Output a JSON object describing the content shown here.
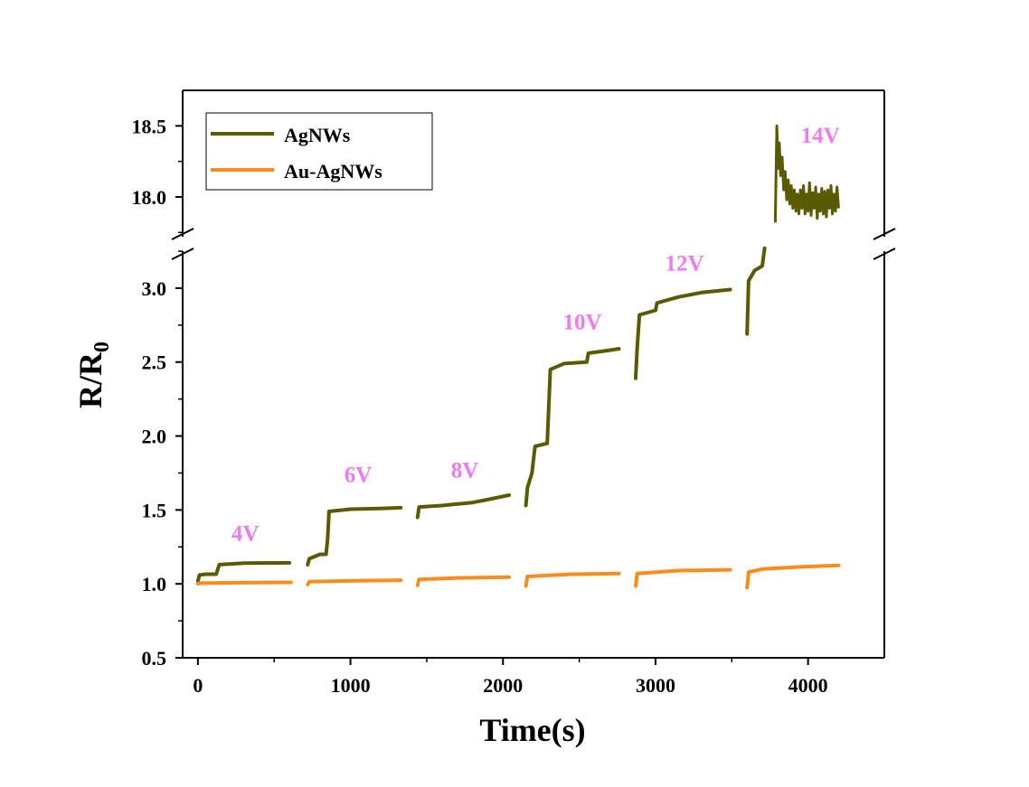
{
  "chart_data": {
    "type": "line",
    "xlabel": "Time(s)",
    "ylabel_main": "R/R",
    "ylabel_sub": "0",
    "xlim": [
      -100,
      4500
    ],
    "xticks": [
      0,
      1000,
      2000,
      3000,
      4000
    ],
    "xtick_labels": [
      "0",
      "1000",
      "2000",
      "3000",
      "4000"
    ],
    "y_lower": {
      "ylim": [
        0.5,
        3.25
      ],
      "yticks": [
        0.5,
        1.0,
        1.5,
        2.0,
        2.5,
        3.0
      ],
      "ytick_labels": [
        "0.5",
        "1.0",
        "1.5",
        "2.0",
        "2.5",
        "3.0"
      ]
    },
    "y_upper": {
      "ylim": [
        17.72,
        18.75
      ],
      "yticks": [
        18.0,
        18.5
      ],
      "ytick_labels": [
        "18.0",
        "18.5"
      ]
    },
    "axis_break": true,
    "grid": false,
    "legend_position": "top-left",
    "series": [
      {
        "name": "AgNWs",
        "color": "#5a5a00",
        "segments": [
          [
            [
              0,
              1.02
            ],
            [
              10,
              1.06
            ],
            [
              50,
              1.065
            ],
            [
              120,
              1.065
            ],
            [
              140,
              1.13
            ],
            [
              300,
              1.14
            ],
            [
              600,
              1.142
            ]
          ],
          [
            [
              720,
              1.13
            ],
            [
              730,
              1.17
            ],
            [
              800,
              1.2
            ],
            [
              840,
              1.2
            ],
            [
              850,
              1.3
            ],
            [
              860,
              1.49
            ],
            [
              1000,
              1.505
            ],
            [
              1200,
              1.51
            ],
            [
              1330,
              1.515
            ]
          ],
          [
            [
              1440,
              1.45
            ],
            [
              1450,
              1.52
            ],
            [
              1600,
              1.53
            ],
            [
              1700,
              1.54
            ],
            [
              1800,
              1.55
            ],
            [
              1900,
              1.57
            ],
            [
              2040,
              1.6
            ]
          ],
          [
            [
              2150,
              1.53
            ],
            [
              2160,
              1.65
            ],
            [
              2190,
              1.75
            ],
            [
              2210,
              1.93
            ],
            [
              2290,
              1.95
            ],
            [
              2310,
              2.45
            ],
            [
              2400,
              2.49
            ],
            [
              2550,
              2.5
            ],
            [
              2560,
              2.56
            ],
            [
              2700,
              2.58
            ],
            [
              2760,
              2.59
            ]
          ],
          [
            [
              2870,
              2.39
            ],
            [
              2880,
              2.6
            ],
            [
              2895,
              2.82
            ],
            [
              3000,
              2.85
            ],
            [
              3010,
              2.9
            ],
            [
              3150,
              2.94
            ],
            [
              3300,
              2.97
            ],
            [
              3490,
              2.99
            ]
          ],
          [
            [
              3600,
              2.69
            ],
            [
              3610,
              3.05
            ],
            [
              3650,
              3.12
            ],
            [
              3700,
              3.15
            ],
            [
              3715,
              3.27
            ]
          ]
        ],
        "upper_segment": [
          [
            3785,
            17.82
          ],
          [
            3795,
            18.5
          ],
          [
            3805,
            18.2
          ],
          [
            3812,
            18.38
          ],
          [
            3820,
            18.15
          ],
          [
            3830,
            18.28
          ],
          [
            3840,
            18.05
          ],
          [
            3850,
            18.18
          ],
          [
            3860,
            17.98
          ],
          [
            3870,
            18.12
          ],
          [
            3880,
            17.95
          ],
          [
            3890,
            18.08
          ],
          [
            3900,
            17.92
          ],
          [
            3910,
            18.05
          ],
          [
            3920,
            17.9
          ],
          [
            3930,
            18.02
          ],
          [
            3940,
            17.88
          ],
          [
            3950,
            18.05
          ],
          [
            3960,
            17.92
          ],
          [
            3970,
            18.08
          ],
          [
            3980,
            17.88
          ],
          [
            3990,
            18.02
          ],
          [
            4000,
            17.9
          ],
          [
            4010,
            18.1
          ],
          [
            4020,
            17.87
          ],
          [
            4030,
            18.03
          ],
          [
            4040,
            17.92
          ],
          [
            4050,
            18.07
          ],
          [
            4060,
            17.85
          ],
          [
            4070,
            18.02
          ],
          [
            4080,
            17.9
          ],
          [
            4090,
            18.06
          ],
          [
            4100,
            17.88
          ],
          [
            4110,
            18.04
          ],
          [
            4120,
            17.86
          ],
          [
            4130,
            18.05
          ],
          [
            4140,
            17.92
          ],
          [
            4150,
            18.08
          ],
          [
            4160,
            17.88
          ],
          [
            4170,
            18.02
          ],
          [
            4180,
            17.9
          ],
          [
            4190,
            18.07
          ],
          [
            4200,
            17.92
          ]
        ]
      },
      {
        "name": "Au-AgNWs",
        "color": "#ff8c1a",
        "segments": [
          [
            [
              0,
              1.0
            ],
            [
              10,
              1.005
            ],
            [
              300,
              1.008
            ],
            [
              610,
              1.01
            ]
          ],
          [
            [
              720,
              0.995
            ],
            [
              730,
              1.015
            ],
            [
              1000,
              1.02
            ],
            [
              1330,
              1.025
            ]
          ],
          [
            [
              1440,
              0.99
            ],
            [
              1450,
              1.03
            ],
            [
              1700,
              1.04
            ],
            [
              2040,
              1.045
            ]
          ],
          [
            [
              2150,
              0.985
            ],
            [
              2160,
              1.05
            ],
            [
              2450,
              1.065
            ],
            [
              2760,
              1.07
            ]
          ],
          [
            [
              2870,
              0.985
            ],
            [
              2880,
              1.07
            ],
            [
              3150,
              1.09
            ],
            [
              3490,
              1.095
            ]
          ],
          [
            [
              3600,
              0.975
            ],
            [
              3610,
              1.08
            ],
            [
              3700,
              1.1
            ],
            [
              3950,
              1.115
            ],
            [
              4200,
              1.125
            ]
          ]
        ]
      }
    ],
    "annotations": [
      {
        "text": "4V",
        "x": 310,
        "y": 1.29,
        "axis": "lower",
        "color": "#f07af0"
      },
      {
        "text": "6V",
        "x": 1050,
        "y": 1.69,
        "axis": "lower",
        "color": "#f07af0"
      },
      {
        "text": "8V",
        "x": 1750,
        "y": 1.72,
        "axis": "lower",
        "color": "#f07af0"
      },
      {
        "text": "10V",
        "x": 2520,
        "y": 2.72,
        "axis": "lower",
        "color": "#f07af0"
      },
      {
        "text": "12V",
        "x": 3190,
        "y": 3.12,
        "axis": "lower",
        "color": "#f07af0"
      },
      {
        "text": "14V",
        "x": 4080,
        "y": 18.38,
        "axis": "upper",
        "color": "#f07af0"
      }
    ]
  }
}
